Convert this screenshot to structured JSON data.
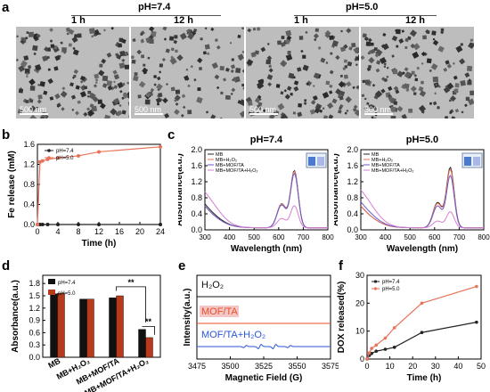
{
  "panel_labels": {
    "a": "a",
    "b": "b",
    "c": "c",
    "d": "d",
    "e": "e",
    "f": "f"
  },
  "panel_a": {
    "ph_left": "pH=7.4",
    "ph_right": "pH=5.0",
    "images": [
      {
        "time": "1 h",
        "scale": "500 nm"
      },
      {
        "time": "12 h",
        "scale": "500 nm"
      },
      {
        "time": "1 h",
        "scale": "500 nm"
      },
      {
        "time": "12 h",
        "scale": "500 nm"
      }
    ]
  },
  "chart_data": [
    {
      "id": "b",
      "type": "line",
      "xlabel": "Time (h)",
      "ylabel": "Fe release (mM)",
      "xlim": [
        0,
        24
      ],
      "ylim": [
        0,
        1.6
      ],
      "xticks": [
        0,
        4,
        8,
        12,
        16,
        20,
        24
      ],
      "yticks": [
        0.0,
        0.4,
        0.8,
        1.2,
        1.6
      ],
      "x": [
        0,
        0.5,
        1,
        2,
        4,
        8,
        12,
        24
      ],
      "series": [
        {
          "name": "pH=7.4",
          "color": "#222222",
          "values": [
            0,
            0,
            0,
            0,
            0,
            0,
            0,
            0
          ]
        },
        {
          "name": "pH=5.0",
          "color": "#e8735a",
          "values": [
            0,
            1.25,
            1.27,
            1.3,
            1.33,
            1.37,
            1.45,
            1.55
          ]
        }
      ]
    },
    {
      "id": "c1",
      "type": "line",
      "title": "pH=7.4",
      "xlabel": "Wavelength (nm)",
      "ylabel": "Absorbance(a.u.)",
      "xlim": [
        300,
        800
      ],
      "ylim": [
        0,
        2.0
      ],
      "xticks": [
        300,
        400,
        500,
        600,
        700,
        800
      ],
      "yticks": [
        0.0,
        0.4,
        0.8,
        1.2,
        1.6,
        2.0
      ],
      "series": [
        {
          "name": "MB",
          "color": "#222222"
        },
        {
          "name": "MB+H₂O₂",
          "color": "#e8735a"
        },
        {
          "name": "MB+MOF/TA",
          "color": "#6a5acd"
        },
        {
          "name": "MB+MOF/TA+H₂O₂",
          "color": "#d77fd0"
        }
      ]
    },
    {
      "id": "c2",
      "type": "line",
      "title": "pH=5.0",
      "xlabel": "Wavelength (nm)",
      "ylabel": "Absorbance(a.u.)",
      "xlim": [
        300,
        800
      ],
      "ylim": [
        0,
        2.0
      ],
      "xticks": [
        300,
        400,
        500,
        600,
        700,
        800
      ],
      "yticks": [
        0.0,
        0.4,
        0.8,
        1.2,
        1.6,
        2.0
      ],
      "series": [
        {
          "name": "MB",
          "color": "#222222"
        },
        {
          "name": "MB+H₂O₂",
          "color": "#e8735a"
        },
        {
          "name": "MB+MOF/TA",
          "color": "#6a5acd"
        },
        {
          "name": "MB+MOF/TA+H₂O₂",
          "color": "#d77fd0"
        }
      ]
    },
    {
      "id": "d",
      "type": "bar",
      "ylabel": "Absorbance(a.u.)",
      "ylim": [
        0,
        2.0
      ],
      "yticks": [
        0.0,
        0.3,
        0.6,
        0.9,
        1.2,
        1.5,
        1.8
      ],
      "categories": [
        "MB",
        "MB+H₂O₂",
        "MB+MOF/TA",
        "MB+MOF/TA+H₂O₂"
      ],
      "series": [
        {
          "name": "pH=7.4",
          "color": "#111111",
          "values": [
            1.55,
            1.42,
            1.45,
            0.68
          ]
        },
        {
          "name": "pH=5.0",
          "color": "#b83a1c",
          "values": [
            1.56,
            1.42,
            1.5,
            0.48
          ]
        }
      ],
      "annotations": [
        "**",
        "**"
      ]
    },
    {
      "id": "e",
      "type": "line",
      "xlabel": "Magnetic Field (G)",
      "ylabel": "Intensity(a.u.)",
      "xlim": [
        3475,
        3575
      ],
      "xticks": [
        3475,
        3500,
        3525,
        3550,
        3575
      ],
      "series": [
        {
          "name": "H₂O₂",
          "color": "#111111"
        },
        {
          "name": "MOF/TA",
          "color": "#e8502a"
        },
        {
          "name": "MOF/TA+H₂O₂",
          "color": "#2a55d8"
        }
      ]
    },
    {
      "id": "f",
      "type": "line",
      "xlabel": "Time (h)",
      "ylabel": "DOX released(%)",
      "xlim": [
        0,
        50
      ],
      "ylim": [
        0,
        30
      ],
      "xticks": [
        0,
        10,
        20,
        30,
        40,
        50
      ],
      "yticks": [
        0,
        10,
        20,
        30
      ],
      "x": [
        0,
        1,
        2,
        4,
        8,
        12,
        24,
        48
      ],
      "series": [
        {
          "name": "pH=7.4",
          "color": "#222222",
          "values": [
            0,
            1.3,
            2.0,
            2.8,
            3.5,
            4.2,
            9.5,
            13.2
          ]
        },
        {
          "name": "pH=5.0",
          "color": "#e8735a",
          "values": [
            0,
            2.2,
            3.8,
            5.0,
            7.5,
            11.2,
            20.0,
            26.0
          ]
        }
      ]
    }
  ]
}
